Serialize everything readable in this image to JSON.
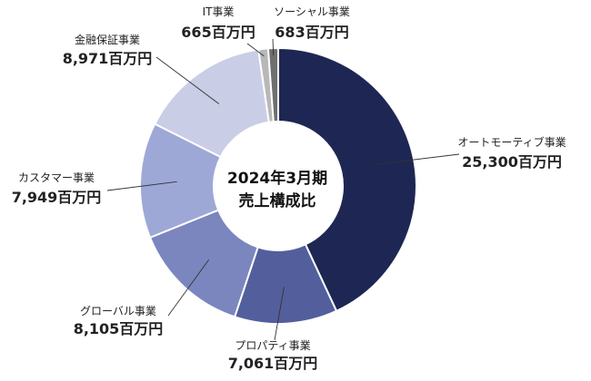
{
  "chart_data": {
    "type": "pie",
    "variant": "donut",
    "center_title": [
      "2024年3月期",
      "売上構成比"
    ],
    "segments": [
      {
        "name": "オートモーティブ事業",
        "value": 25300,
        "label": "25,300百万円",
        "color": "#1e2753"
      },
      {
        "name": "プロパティ事業",
        "value": 7061,
        "label": "7,061百万円",
        "color": "#535f9c"
      },
      {
        "name": "グローバル事業",
        "value": 8105,
        "label": "8,105百万円",
        "color": "#7a86bd"
      },
      {
        "name": "カスタマー事業",
        "value": 7949,
        "label": "7,949百万円",
        "color": "#9ea8d6"
      },
      {
        "name": "金融保証事業",
        "value": 8971,
        "label": "8,971百万円",
        "color": "#c9cde6"
      },
      {
        "name": "IT事業",
        "value": 665,
        "label": "665百万円",
        "color": "#b8b8b8"
      },
      {
        "name": "ソーシャル事業",
        "value": 683,
        "label": "683百万円",
        "color": "#6f6f6f"
      }
    ]
  }
}
